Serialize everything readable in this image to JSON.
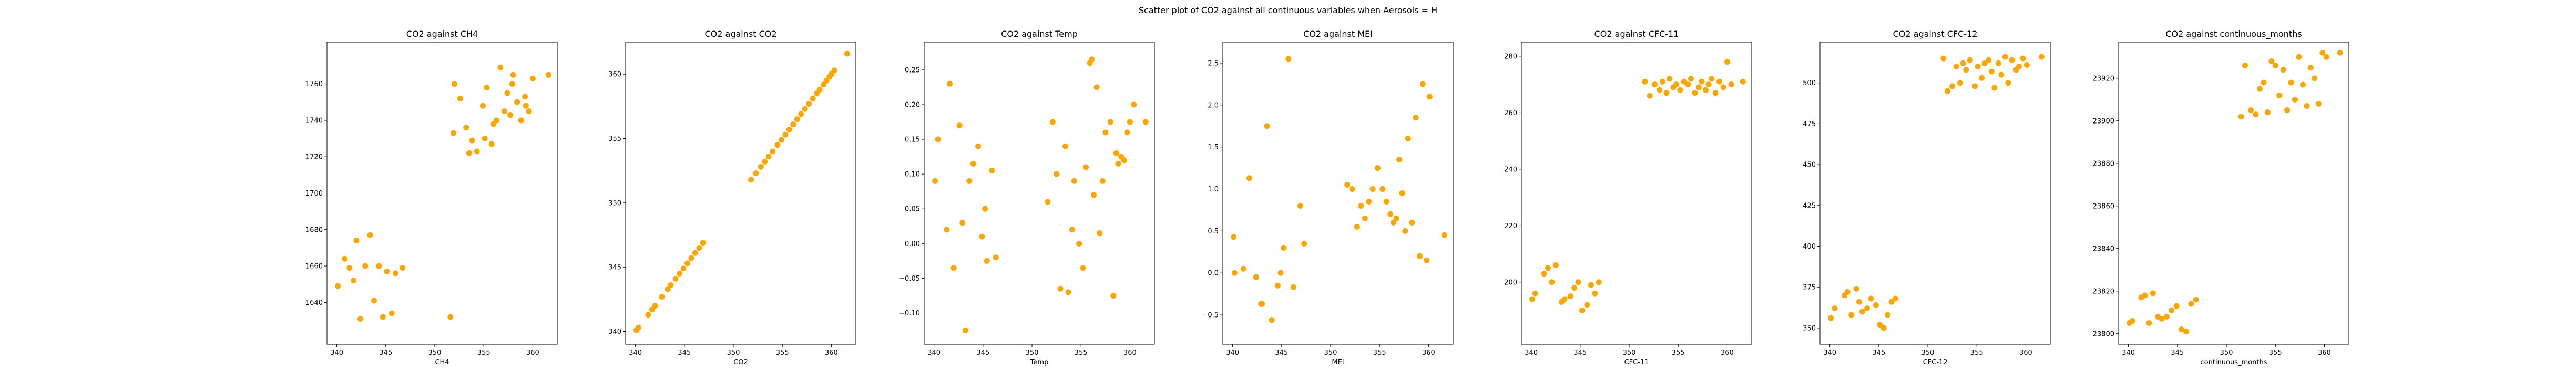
{
  "figure": {
    "title": "Scatter plot of CO2 against all continuous variables when Aerosols = H",
    "point_color": "#ffa500"
  },
  "chart_data": [
    {
      "type": "scatter",
      "title": "CO2 against CH4",
      "xlabel": "CH4",
      "ylabel": "",
      "xlim": [
        339.0,
        362.5
      ],
      "ylim": [
        1617,
        1783
      ],
      "xticks": [
        340,
        345,
        350,
        355,
        360
      ],
      "yticks": [
        1640,
        1660,
        1680,
        1700,
        1720,
        1740,
        1760
      ],
      "grid": false,
      "x": [
        340.1,
        340.8,
        341.3,
        341.7,
        342.0,
        342.4,
        342.9,
        343.4,
        343.8,
        344.3,
        344.7,
        345.1,
        345.6,
        346.0,
        346.7,
        351.6,
        352.0,
        352.6,
        353.2,
        353.8,
        354.3,
        354.9,
        355.3,
        355.8,
        356.3,
        356.7,
        357.1,
        357.4,
        357.7,
        358.0,
        358.4,
        358.8,
        359.2,
        359.6,
        360.0,
        361.6,
        351.9,
        353.5,
        355.1,
        356.0,
        357.9,
        359.3
      ],
      "y": [
        1649,
        1664,
        1659,
        1652,
        1674,
        1631,
        1660,
        1677,
        1641,
        1660,
        1632,
        1657,
        1634,
        1656,
        1659,
        1632,
        1760,
        1752,
        1736,
        1729,
        1723,
        1748,
        1758,
        1727,
        1740,
        1769,
        1745,
        1755,
        1743,
        1765,
        1750,
        1740,
        1753,
        1745,
        1763,
        1765,
        1733,
        1722,
        1730,
        1738,
        1760,
        1748
      ]
    },
    {
      "type": "scatter",
      "title": "CO2 against CO2",
      "xlabel": "CO2",
      "ylabel": "",
      "xlim": [
        339.0,
        362.5
      ],
      "ylim": [
        339.0,
        362.5
      ],
      "xticks": [
        340,
        345,
        350,
        355,
        360
      ],
      "yticks": [
        340,
        345,
        350,
        355,
        360
      ],
      "grid": false,
      "x": [
        340.1,
        340.3,
        341.3,
        341.7,
        342.0,
        342.7,
        343.3,
        343.6,
        344.1,
        344.5,
        344.9,
        345.3,
        345.7,
        346.1,
        346.5,
        346.9,
        351.8,
        352.3,
        352.8,
        353.2,
        353.6,
        354.0,
        354.5,
        354.9,
        355.3,
        355.7,
        356.1,
        356.5,
        356.9,
        357.3,
        357.7,
        358.1,
        358.5,
        358.8,
        359.2,
        359.5,
        359.8,
        360.0,
        360.3,
        361.6
      ],
      "y": [
        340.1,
        340.3,
        341.3,
        341.7,
        342.0,
        342.7,
        343.3,
        343.6,
        344.1,
        344.5,
        344.9,
        345.3,
        345.7,
        346.1,
        346.5,
        346.9,
        351.8,
        352.3,
        352.8,
        353.2,
        353.6,
        354.0,
        354.5,
        354.9,
        355.3,
        355.7,
        356.1,
        356.5,
        356.9,
        357.3,
        357.7,
        358.1,
        358.5,
        358.8,
        359.2,
        359.5,
        359.8,
        360.0,
        360.3,
        361.6
      ]
    },
    {
      "type": "scatter",
      "title": "CO2 against Temp",
      "xlabel": "Temp",
      "ylabel": "",
      "xlim": [
        339.0,
        362.5
      ],
      "ylim": [
        -0.145,
        0.29
      ],
      "xticks": [
        340,
        345,
        350,
        355,
        360
      ],
      "yticks": [
        -0.1,
        -0.05,
        0.0,
        0.05,
        0.1,
        0.15,
        0.2,
        0.25
      ],
      "ytick_labels": [
        "−0.10",
        "−0.05",
        "0.00",
        "0.05",
        "0.10",
        "0.15",
        "0.20",
        "0.25"
      ],
      "grid": false,
      "x": [
        340.1,
        340.4,
        341.3,
        341.6,
        342.0,
        342.6,
        342.9,
        343.2,
        343.6,
        344.0,
        344.5,
        344.9,
        345.2,
        345.4,
        345.9,
        346.3,
        351.6,
        352.1,
        352.5,
        352.9,
        353.4,
        353.7,
        354.1,
        354.3,
        354.8,
        355.2,
        355.5,
        355.9,
        356.1,
        356.3,
        356.6,
        356.9,
        357.2,
        357.5,
        358.0,
        358.3,
        358.6,
        358.8,
        359.1,
        359.4,
        359.7,
        360.0,
        360.4,
        361.6
      ],
      "y": [
        0.09,
        0.15,
        0.02,
        0.23,
        -0.035,
        0.17,
        0.03,
        -0.125,
        0.09,
        0.115,
        0.14,
        0.01,
        0.05,
        -0.025,
        0.105,
        -0.02,
        0.06,
        0.175,
        0.1,
        -0.065,
        0.14,
        -0.07,
        0.02,
        0.09,
        0.0,
        -0.035,
        0.11,
        0.26,
        0.265,
        0.07,
        0.225,
        0.015,
        0.09,
        0.16,
        0.175,
        -0.075,
        0.13,
        0.115,
        0.125,
        0.12,
        0.16,
        0.175,
        0.2,
        0.175
      ]
    },
    {
      "type": "scatter",
      "title": "CO2 against MEI",
      "xlabel": "MEI",
      "ylabel": "",
      "xlim": [
        339.0,
        362.5
      ],
      "ylim": [
        -0.85,
        2.75
      ],
      "xticks": [
        340,
        345,
        350,
        355,
        360
      ],
      "yticks": [
        -0.5,
        0.0,
        0.5,
        1.0,
        1.5,
        2.0,
        2.5
      ],
      "ytick_labels": [
        "−0.5",
        "0.0",
        "0.5",
        "1.0",
        "1.5",
        "2.0",
        "2.5"
      ],
      "grid": false,
      "x": [
        340.1,
        340.2,
        341.1,
        341.7,
        342.4,
        342.9,
        343.5,
        344.0,
        344.6,
        345.2,
        345.7,
        346.2,
        346.9,
        347.3,
        351.7,
        352.2,
        352.7,
        353.1,
        353.5,
        353.9,
        354.3,
        354.8,
        355.3,
        355.7,
        356.1,
        356.4,
        356.7,
        357.0,
        357.3,
        357.6,
        357.9,
        358.3,
        358.7,
        359.1,
        359.4,
        359.8,
        360.1,
        361.6,
        344.9,
        343.0
      ],
      "y": [
        0.43,
        0.0,
        0.05,
        1.13,
        -0.05,
        -0.37,
        1.75,
        -0.56,
        -0.15,
        0.3,
        2.55,
        -0.17,
        0.8,
        0.35,
        1.05,
        1.0,
        0.55,
        0.8,
        0.65,
        0.85,
        1.0,
        1.25,
        1.0,
        0.85,
        0.7,
        0.6,
        0.65,
        1.35,
        0.95,
        0.5,
        1.6,
        0.6,
        1.85,
        0.2,
        2.25,
        0.15,
        2.1,
        0.45,
        0.0,
        -0.37
      ]
    },
    {
      "type": "scatter",
      "title": "CO2 against CFC-11",
      "xlabel": "CFC-11",
      "ylabel": "",
      "xlim": [
        339.0,
        362.5
      ],
      "ylim": [
        178,
        285
      ],
      "xticks": [
        340,
        345,
        350,
        355,
        360
      ],
      "yticks": [
        200,
        220,
        240,
        260,
        280
      ],
      "grid": false,
      "x": [
        340.1,
        340.4,
        341.3,
        341.7,
        342.1,
        342.5,
        343.1,
        343.4,
        344.0,
        344.4,
        344.8,
        345.2,
        345.7,
        346.1,
        346.5,
        346.9,
        351.6,
        352.1,
        352.6,
        353.1,
        353.4,
        353.8,
        354.1,
        354.5,
        354.8,
        355.2,
        355.6,
        356.0,
        356.3,
        356.7,
        357.1,
        357.4,
        357.8,
        358.1,
        358.4,
        358.8,
        359.2,
        359.6,
        360.0,
        360.4,
        361.6
      ],
      "y": [
        194,
        196,
        203,
        205,
        200,
        206,
        193,
        194,
        195,
        198,
        200,
        190,
        192,
        199,
        196,
        200,
        271,
        266,
        270,
        268,
        271,
        267,
        272,
        269,
        270,
        268,
        271,
        270,
        272,
        267,
        269,
        271,
        268,
        270,
        272,
        267,
        271,
        269,
        278,
        270,
        271
      ]
    },
    {
      "type": "scatter",
      "title": "CO2 against CFC-12",
      "xlabel": "CFC-12",
      "ylabel": "",
      "xlim": [
        339.0,
        362.5
      ],
      "ylim": [
        340,
        525
      ],
      "xticks": [
        340,
        345,
        350,
        355,
        360
      ],
      "yticks": [
        350,
        375,
        400,
        425,
        450,
        475,
        500
      ],
      "grid": false,
      "x": [
        340.1,
        340.5,
        341.5,
        341.8,
        342.2,
        342.7,
        343.0,
        343.3,
        343.8,
        344.2,
        344.7,
        345.1,
        345.5,
        345.9,
        346.3,
        346.7,
        351.6,
        352.0,
        352.5,
        352.9,
        353.3,
        353.6,
        353.9,
        354.3,
        354.8,
        355.1,
        355.5,
        355.8,
        356.2,
        356.5,
        356.8,
        357.2,
        357.5,
        357.9,
        358.2,
        358.6,
        359.0,
        359.3,
        359.7,
        360.1,
        361.6
      ],
      "y": [
        356,
        362,
        370,
        372,
        358,
        374,
        366,
        360,
        362,
        368,
        364,
        352,
        350,
        358,
        366,
        368,
        515,
        495,
        498,
        510,
        500,
        512,
        508,
        514,
        498,
        510,
        503,
        512,
        514,
        507,
        497,
        512,
        505,
        516,
        500,
        514,
        508,
        510,
        515,
        511,
        516
      ]
    },
    {
      "type": "scatter",
      "title": "CO2 against continuous_months",
      "xlabel": "continuous_months",
      "ylabel": "",
      "xlim": [
        339.0,
        362.5
      ],
      "ylim": [
        23795,
        23937
      ],
      "xticks": [
        340,
        345,
        350,
        355,
        360
      ],
      "yticks": [
        23800,
        23820,
        23840,
        23860,
        23880,
        23900,
        23920
      ],
      "grid": false,
      "x": [
        340.1,
        340.4,
        341.3,
        341.7,
        342.1,
        342.5,
        343.0,
        343.4,
        343.9,
        344.4,
        344.9,
        345.4,
        345.9,
        346.4,
        346.9,
        351.5,
        351.9,
        352.5,
        353.0,
        353.4,
        353.8,
        354.2,
        354.6,
        355.0,
        355.4,
        355.8,
        356.2,
        356.6,
        357.0,
        357.4,
        357.8,
        358.2,
        358.6,
        359.0,
        359.4,
        359.8,
        360.2,
        361.6
      ],
      "y": [
        23805,
        23806,
        23817,
        23818,
        23805,
        23819,
        23808,
        23807,
        23808,
        23811,
        23813,
        23802,
        23801,
        23814,
        23816,
        23902,
        23926,
        23905,
        23903,
        23915,
        23918,
        23904,
        23928,
        23926,
        23912,
        23924,
        23905,
        23918,
        23910,
        23930,
        23917,
        23907,
        23925,
        23920,
        23908,
        23932,
        23930,
        23932
      ]
    }
  ]
}
